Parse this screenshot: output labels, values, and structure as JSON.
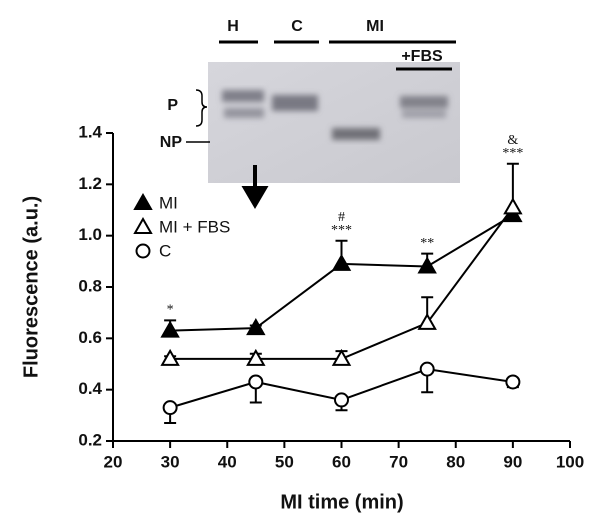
{
  "chart_data": {
    "type": "line",
    "x_label": "MI time (min)",
    "y_label": "Fluorescence (a.u.)",
    "x": [
      30,
      45,
      60,
      75,
      90
    ],
    "series": [
      {
        "name": "MI",
        "color": "#000000",
        "marker": "triangle",
        "filled": true,
        "error_side": "up",
        "values": [
          0.63,
          0.64,
          0.89,
          0.88,
          1.08
        ],
        "errors": [
          0.04,
          0.01,
          0.09,
          0.05,
          0.0
        ]
      },
      {
        "name": "MI + FBS",
        "color": "#000000",
        "marker": "triangle",
        "filled": false,
        "error_side": "up",
        "values": [
          0.52,
          0.52,
          0.52,
          0.66,
          1.11
        ],
        "errors": [
          0.01,
          0.02,
          0.03,
          0.1,
          0.17
        ]
      },
      {
        "name": "C",
        "color": "#000000",
        "marker": "circle",
        "filled": false,
        "error_side": "down",
        "values": [
          0.33,
          0.43,
          0.36,
          0.48,
          0.43
        ],
        "errors": [
          0.06,
          0.08,
          0.04,
          0.09,
          0.02
        ]
      }
    ],
    "annotations": [
      {
        "x": 30,
        "lines": [
          "*"
        ]
      },
      {
        "x": 60,
        "lines": [
          "#",
          "***"
        ]
      },
      {
        "x": 75,
        "lines": [
          "**"
        ]
      },
      {
        "x": 90,
        "lines": [
          "&",
          "***"
        ]
      }
    ],
    "xlim": [
      20,
      100
    ],
    "xticks": [
      20,
      30,
      40,
      50,
      60,
      70,
      80,
      90,
      100
    ],
    "ylim": [
      0.2,
      1.4
    ],
    "yticks": [
      0.2,
      0.4,
      0.6,
      0.8,
      {
        "value": 1,
        "label": "1.0"
      },
      1.2,
      1.4
    ],
    "grid": false,
    "legend": "upper left"
  },
  "inset": {
    "lanes": [
      "H",
      "C",
      "MI",
      "+FBS"
    ],
    "bands": [
      "P",
      "NP"
    ]
  }
}
